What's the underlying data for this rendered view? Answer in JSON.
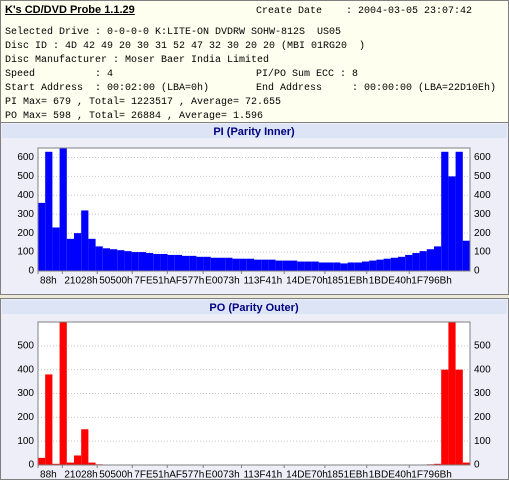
{
  "header": {
    "title": "K's CD/DVD Probe 1.1.29",
    "create_date": "Create Date    : 2004-03-05 23:07:42",
    "lines": [
      "Selected Drive : 0-0-0-0 K:LITE-ON DVDRW SOHW-812S  US05",
      "Disc ID : 4D 42 49 20 30 31 52 47 32 30 20 20 (MBI 01RG20  )",
      "Disc Manufacturer : Moser Baer India Limited",
      "Speed          : 4",
      "Start Address  : 00:02:00 (LBA=0h)",
      "PI Max= 679 , Total= 1223517 , Average= 72.655",
      "PO Max= 598 , Total= 26884 , Average= 1.596"
    ],
    "right_lines": [
      "PI/PO Sum ECC : 8",
      "End Address     : 00:00:00 (LBA=22D10Eh)"
    ]
  },
  "chart_data": [
    {
      "type": "bar",
      "title": "PI (Parity Inner)",
      "color": "#0000ff",
      "grid": true,
      "x": [
        0,
        40000,
        80000,
        120000,
        160000,
        200000,
        240000,
        280000,
        320000,
        360000,
        400000,
        440000,
        480000,
        520000,
        560000,
        600000,
        640000,
        680000,
        720000,
        760000,
        800000,
        840000,
        880000,
        920000,
        960000,
        1000000,
        1040000,
        1080000,
        1120000,
        1160000,
        1200000,
        1240000,
        1280000,
        1320000,
        1360000,
        1400000,
        1440000,
        1480000,
        1520000,
        1560000,
        1600000,
        1640000,
        1680000,
        1720000,
        1760000,
        1800000,
        1840000,
        1880000,
        1920000,
        1960000,
        2000000,
        2040000,
        2080000,
        2120000,
        2160000,
        2200000,
        2240000,
        2280000,
        2320000,
        2360000
      ],
      "values": [
        360,
        630,
        230,
        679,
        170,
        200,
        320,
        170,
        130,
        120,
        115,
        110,
        105,
        100,
        100,
        95,
        90,
        90,
        85,
        85,
        80,
        80,
        75,
        75,
        70,
        70,
        70,
        65,
        65,
        65,
        60,
        60,
        60,
        55,
        55,
        55,
        50,
        50,
        50,
        45,
        45,
        45,
        40,
        45,
        45,
        50,
        55,
        60,
        65,
        70,
        75,
        85,
        95,
        105,
        115,
        130,
        630,
        500,
        630,
        160
      ],
      "xlim": [
        0,
        2400000
      ],
      "xticks": [
        {
          "value": 136,
          "label": "88h"
        },
        {
          "value": 135208,
          "label": "21028h"
        },
        {
          "value": 328960,
          "label": "50500h"
        },
        {
          "value": 523857,
          "label": "7FE51h"
        },
        {
          "value": 718199,
          "label": "AF577h"
        },
        {
          "value": 917619,
          "label": "E0073h"
        },
        {
          "value": 1130305,
          "label": "113F41h"
        },
        {
          "value": 1367664,
          "label": "14DE70h"
        },
        {
          "value": 1593835,
          "label": "1851EBh"
        },
        {
          "value": 1826368,
          "label": "1BDE40h"
        },
        {
          "value": 2062699,
          "label": "1F796Bh"
        }
      ],
      "ylim": [
        0,
        650
      ],
      "yticks": [
        0,
        100,
        200,
        300,
        400,
        500,
        600
      ]
    },
    {
      "type": "bar",
      "title": "PO (Parity Outer)",
      "color": "#ff0000",
      "grid": true,
      "x": [
        0,
        40000,
        80000,
        120000,
        160000,
        200000,
        240000,
        280000,
        320000,
        360000,
        400000,
        440000,
        480000,
        520000,
        560000,
        600000,
        640000,
        680000,
        720000,
        760000,
        800000,
        840000,
        880000,
        920000,
        960000,
        1000000,
        1040000,
        1080000,
        1120000,
        1160000,
        1200000,
        1240000,
        1280000,
        1320000,
        1360000,
        1400000,
        1440000,
        1480000,
        1520000,
        1560000,
        1600000,
        1640000,
        1680000,
        1720000,
        1760000,
        1800000,
        1840000,
        1880000,
        1920000,
        1960000,
        2000000,
        2040000,
        2080000,
        2120000,
        2160000,
        2200000,
        2240000,
        2280000,
        2320000,
        2360000
      ],
      "values": [
        30,
        380,
        5,
        598,
        10,
        40,
        150,
        10,
        3,
        2,
        2,
        1,
        1,
        1,
        1,
        1,
        1,
        1,
        1,
        1,
        1,
        1,
        1,
        1,
        1,
        1,
        1,
        1,
        1,
        1,
        1,
        1,
        1,
        1,
        1,
        1,
        1,
        1,
        1,
        1,
        1,
        1,
        1,
        1,
        1,
        1,
        1,
        1,
        1,
        1,
        1,
        1,
        2,
        2,
        3,
        5,
        400,
        598,
        400,
        10
      ],
      "xlim": [
        0,
        2400000
      ],
      "xticks": [
        {
          "value": 136,
          "label": "88h"
        },
        {
          "value": 135208,
          "label": "21028h"
        },
        {
          "value": 328960,
          "label": "50500h"
        },
        {
          "value": 523857,
          "label": "7FE51h"
        },
        {
          "value": 718199,
          "label": "AF577h"
        },
        {
          "value": 917619,
          "label": "E0073h"
        },
        {
          "value": 1130305,
          "label": "113F41h"
        },
        {
          "value": 1367664,
          "label": "14DE70h"
        },
        {
          "value": 1593835,
          "label": "1851EBh"
        },
        {
          "value": 1826368,
          "label": "1BDE40h"
        },
        {
          "value": 2062699,
          "label": "1F796Bh"
        }
      ],
      "ylim": [
        0,
        600
      ],
      "yticks": [
        0,
        100,
        200,
        300,
        400,
        500
      ]
    }
  ]
}
